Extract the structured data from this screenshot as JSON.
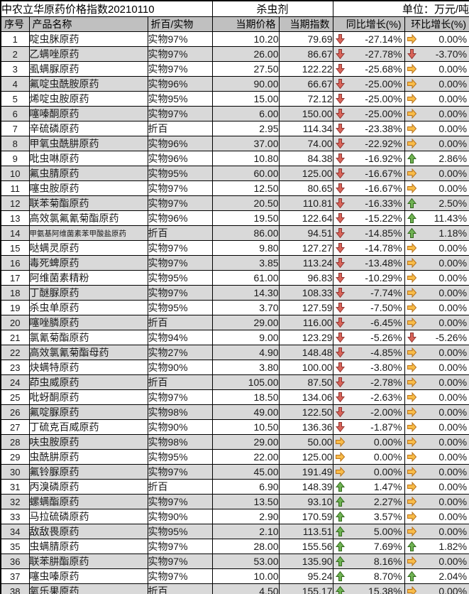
{
  "header": {
    "title": "中农立华原药价格指数20210110",
    "category": "杀虫剂",
    "unit": "单位：万元/吨"
  },
  "columns": {
    "no": "序号",
    "name": "产品名称",
    "spec": "折百/实物",
    "price": "当期价格",
    "index": "当期指数",
    "yoy": "同比增长(%)",
    "mom": "环比增长(%)"
  },
  "trend_colors": {
    "up": {
      "fill": "#6fb253",
      "stroke": "#31691b"
    },
    "down": {
      "fill": "#d96459",
      "stroke": "#913431"
    },
    "flat": {
      "fill": "#f8bc4a",
      "stroke": "#ba7318"
    }
  },
  "row_colors": {
    "odd": "#ffffff",
    "even": "#d9d9d9",
    "header": "#c0c0c0"
  },
  "rows": [
    {
      "no": "1",
      "name": "啶虫脒原药",
      "spec": "实物97%",
      "price": "10.20",
      "index": "79.69",
      "yoy": "-27.14%",
      "yoy_trend": "down",
      "mom": "0.00%",
      "mom_trend": "flat"
    },
    {
      "no": "2",
      "name": "乙螨唑原药",
      "spec": "实物97%",
      "price": "26.00",
      "index": "86.67",
      "yoy": "-27.78%",
      "yoy_trend": "down",
      "mom": "-3.70%",
      "mom_trend": "down"
    },
    {
      "no": "3",
      "name": "虱螨脲原药",
      "spec": "实物97%",
      "price": "27.50",
      "index": "122.22",
      "yoy": "-25.68%",
      "yoy_trend": "down",
      "mom": "0.00%",
      "mom_trend": "flat"
    },
    {
      "no": "4",
      "name": "氟啶虫酰胺原药",
      "spec": "实物96%",
      "price": "90.00",
      "index": "66.67",
      "yoy": "-25.00%",
      "yoy_trend": "down",
      "mom": "0.00%",
      "mom_trend": "flat"
    },
    {
      "no": "5",
      "name": "烯啶虫胺原药",
      "spec": "实物95%",
      "price": "15.00",
      "index": "72.12",
      "yoy": "-25.00%",
      "yoy_trend": "down",
      "mom": "0.00%",
      "mom_trend": "flat"
    },
    {
      "no": "6",
      "name": "噻嗪酮原药",
      "spec": "实物97%",
      "price": "6.00",
      "index": "150.00",
      "yoy": "-25.00%",
      "yoy_trend": "down",
      "mom": "0.00%",
      "mom_trend": "flat"
    },
    {
      "no": "7",
      "name": "辛硫磷原药",
      "spec": "折百",
      "price": "2.95",
      "index": "114.34",
      "yoy": "-23.38%",
      "yoy_trend": "down",
      "mom": "0.00%",
      "mom_trend": "flat"
    },
    {
      "no": "8",
      "name": "甲氧虫酰肼原药",
      "spec": "实物96%",
      "price": "37.00",
      "index": "74.00",
      "yoy": "-22.92%",
      "yoy_trend": "down",
      "mom": "0.00%",
      "mom_trend": "flat"
    },
    {
      "no": "9",
      "name": "吡虫啉原药",
      "spec": "实物96%",
      "price": "10.80",
      "index": "84.38",
      "yoy": "-16.92%",
      "yoy_trend": "down",
      "mom": "2.86%",
      "mom_trend": "up"
    },
    {
      "no": "10",
      "name": "氟虫腈原药",
      "spec": "实物95%",
      "price": "60.00",
      "index": "125.00",
      "yoy": "-16.67%",
      "yoy_trend": "down",
      "mom": "0.00%",
      "mom_trend": "flat"
    },
    {
      "no": "11",
      "name": "噻虫胺原药",
      "spec": "实物97%",
      "price": "12.50",
      "index": "80.65",
      "yoy": "-16.67%",
      "yoy_trend": "down",
      "mom": "0.00%",
      "mom_trend": "flat"
    },
    {
      "no": "12",
      "name": "联苯菊酯原药",
      "spec": "实物97%",
      "price": "20.50",
      "index": "110.81",
      "yoy": "-16.33%",
      "yoy_trend": "down",
      "mom": "2.50%",
      "mom_trend": "up"
    },
    {
      "no": "13",
      "name": "高效氯氟氰菊酯原药",
      "spec": "实物96%",
      "price": "19.50",
      "index": "122.64",
      "yoy": "-15.22%",
      "yoy_trend": "down",
      "mom": "11.43%",
      "mom_trend": "up"
    },
    {
      "no": "14",
      "name": "甲氨基阿维菌素苯甲酸盐原药",
      "spec": "折百",
      "price": "86.00",
      "index": "94.51",
      "yoy": "-14.85%",
      "yoy_trend": "down",
      "mom": "1.18%",
      "mom_trend": "up",
      "small": true
    },
    {
      "no": "15",
      "name": "哒螨灵原药",
      "spec": "实物97%",
      "price": "9.80",
      "index": "127.27",
      "yoy": "-14.78%",
      "yoy_trend": "down",
      "mom": "0.00%",
      "mom_trend": "flat"
    },
    {
      "no": "16",
      "name": "毒死蜱原药",
      "spec": "实物97%",
      "price": "3.85",
      "index": "113.24",
      "yoy": "-13.48%",
      "yoy_trend": "down",
      "mom": "0.00%",
      "mom_trend": "flat"
    },
    {
      "no": "17",
      "name": "阿维菌素精粉",
      "spec": "实物95%",
      "price": "61.00",
      "index": "96.83",
      "yoy": "-10.29%",
      "yoy_trend": "down",
      "mom": "0.00%",
      "mom_trend": "flat"
    },
    {
      "no": "18",
      "name": "丁醚脲原药",
      "spec": "实物97%",
      "price": "14.30",
      "index": "108.33",
      "yoy": "-7.74%",
      "yoy_trend": "down",
      "mom": "0.00%",
      "mom_trend": "flat"
    },
    {
      "no": "19",
      "name": "杀虫单原药",
      "spec": "实物95%",
      "price": "3.70",
      "index": "127.59",
      "yoy": "-7.50%",
      "yoy_trend": "down",
      "mom": "0.00%",
      "mom_trend": "flat"
    },
    {
      "no": "20",
      "name": "噻唑膦原药",
      "spec": "折百",
      "price": "29.00",
      "index": "116.00",
      "yoy": "-6.45%",
      "yoy_trend": "down",
      "mom": "0.00%",
      "mom_trend": "flat"
    },
    {
      "no": "21",
      "name": "氯氰菊酯原药",
      "spec": "实物94%",
      "price": "9.00",
      "index": "123.29",
      "yoy": "-5.26%",
      "yoy_trend": "down",
      "mom": "-5.26%",
      "mom_trend": "down"
    },
    {
      "no": "22",
      "name": "高效氯氰菊酯母药",
      "spec": "实物27%",
      "price": "4.90",
      "index": "148.48",
      "yoy": "-4.85%",
      "yoy_trend": "down",
      "mom": "0.00%",
      "mom_trend": "flat"
    },
    {
      "no": "23",
      "name": "炔螨特原药",
      "spec": "实物90%",
      "price": "3.80",
      "index": "100.00",
      "yoy": "-3.80%",
      "yoy_trend": "down",
      "mom": "0.00%",
      "mom_trend": "flat"
    },
    {
      "no": "24",
      "name": "茚虫威原药",
      "spec": "折百",
      "price": "105.00",
      "index": "87.50",
      "yoy": "-2.78%",
      "yoy_trend": "down",
      "mom": "0.00%",
      "mom_trend": "flat"
    },
    {
      "no": "25",
      "name": "吡蚜酮原药",
      "spec": "实物97%",
      "price": "18.50",
      "index": "134.06",
      "yoy": "-2.63%",
      "yoy_trend": "down",
      "mom": "0.00%",
      "mom_trend": "flat"
    },
    {
      "no": "26",
      "name": "氟啶脲原药",
      "spec": "实物98%",
      "price": "49.00",
      "index": "122.50",
      "yoy": "-2.00%",
      "yoy_trend": "down",
      "mom": "0.00%",
      "mom_trend": "flat"
    },
    {
      "no": "27",
      "name": "丁硫克百威原药",
      "spec": "实物90%",
      "price": "10.50",
      "index": "136.36",
      "yoy": "-1.87%",
      "yoy_trend": "down",
      "mom": "0.00%",
      "mom_trend": "flat"
    },
    {
      "no": "28",
      "name": "呋虫胺原药",
      "spec": "实物98%",
      "price": "29.00",
      "index": "50.00",
      "yoy": "0.00%",
      "yoy_trend": "flat",
      "mom": "0.00%",
      "mom_trend": "flat"
    },
    {
      "no": "29",
      "name": "虫酰肼原药",
      "spec": "实物95%",
      "price": "22.00",
      "index": "125.00",
      "yoy": "0.00%",
      "yoy_trend": "flat",
      "mom": "0.00%",
      "mom_trend": "flat"
    },
    {
      "no": "30",
      "name": "氟铃脲原药",
      "spec": "实物97%",
      "price": "45.00",
      "index": "191.49",
      "yoy": "0.00%",
      "yoy_trend": "flat",
      "mom": "0.00%",
      "mom_trend": "flat"
    },
    {
      "no": "31",
      "name": "丙溴磷原药",
      "spec": "折百",
      "price": "6.90",
      "index": "148.39",
      "yoy": "1.47%",
      "yoy_trend": "up",
      "mom": "0.00%",
      "mom_trend": "flat"
    },
    {
      "no": "32",
      "name": "螺螨酯原药",
      "spec": "实物97%",
      "price": "13.50",
      "index": "93.10",
      "yoy": "2.27%",
      "yoy_trend": "up",
      "mom": "0.00%",
      "mom_trend": "flat"
    },
    {
      "no": "33",
      "name": "马拉硫磷原药",
      "spec": "实物90%",
      "price": "2.90",
      "index": "170.59",
      "yoy": "3.57%",
      "yoy_trend": "up",
      "mom": "0.00%",
      "mom_trend": "flat"
    },
    {
      "no": "34",
      "name": "敌敌畏原药",
      "spec": "实物95%",
      "price": "2.10",
      "index": "113.51",
      "yoy": "5.00%",
      "yoy_trend": "up",
      "mom": "0.00%",
      "mom_trend": "flat"
    },
    {
      "no": "35",
      "name": "虫螨腈原药",
      "spec": "实物97%",
      "price": "28.00",
      "index": "155.56",
      "yoy": "7.69%",
      "yoy_trend": "up",
      "mom": "1.82%",
      "mom_trend": "up"
    },
    {
      "no": "36",
      "name": "联苯肼酯原药",
      "spec": "实物97%",
      "price": "53.00",
      "index": "135.90",
      "yoy": "8.16%",
      "yoy_trend": "up",
      "mom": "0.00%",
      "mom_trend": "flat"
    },
    {
      "no": "37",
      "name": "噻虫嗪原药",
      "spec": "实物97%",
      "price": "10.00",
      "index": "95.24",
      "yoy": "8.70%",
      "yoy_trend": "up",
      "mom": "2.04%",
      "mom_trend": "up"
    },
    {
      "no": "38",
      "name": "氧乐果原药",
      "spec": "折百",
      "price": "4.50",
      "index": "155.17",
      "yoy": "15.38%",
      "yoy_trend": "up",
      "mom": "0.00%",
      "mom_trend": "flat"
    }
  ]
}
